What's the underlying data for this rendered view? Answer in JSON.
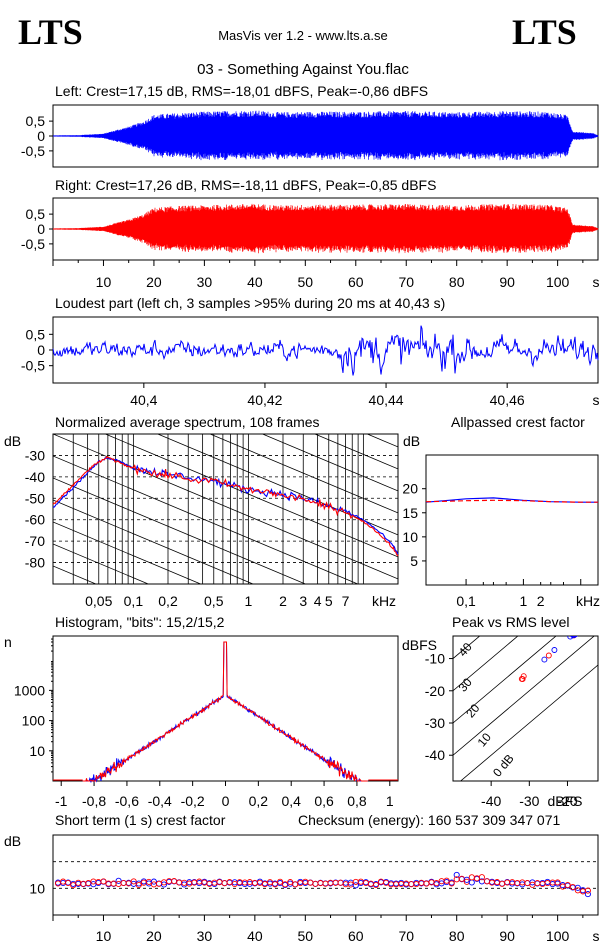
{
  "header": {
    "logo_left": "LTS",
    "logo_right": "LTS",
    "app": "MasVis ver 1.2 - www.lts.a.se",
    "file": "03 - Something Against You.flac"
  },
  "colors": {
    "left": "#0000ff",
    "right": "#ff0000",
    "text": "#000000"
  },
  "chart_data": [
    {
      "type": "area",
      "title": "Left: Crest=17,15 dB, RMS=-18,01 dBFS, Peak=-0,86 dBFS",
      "ylim": [
        -1,
        1
      ],
      "yticks": [
        "0,5",
        "0",
        "-0,5"
      ],
      "xlim": [
        0,
        108
      ],
      "envelope": [
        [
          0,
          0.02
        ],
        [
          5,
          0.03
        ],
        [
          10,
          0.08
        ],
        [
          12,
          0.18
        ],
        [
          15,
          0.32
        ],
        [
          18,
          0.5
        ],
        [
          20,
          0.72
        ],
        [
          25,
          0.78
        ],
        [
          30,
          0.82
        ],
        [
          35,
          0.85
        ],
        [
          40,
          0.86
        ],
        [
          45,
          0.8
        ],
        [
          50,
          0.82
        ],
        [
          60,
          0.82
        ],
        [
          70,
          0.84
        ],
        [
          80,
          0.8
        ],
        [
          90,
          0.84
        ],
        [
          98,
          0.82
        ],
        [
          102,
          0.7
        ],
        [
          103,
          0.15
        ],
        [
          107,
          0.1
        ],
        [
          108,
          0.02
        ]
      ]
    },
    {
      "type": "area",
      "title": "Right: Crest=17,26 dB, RMS=-18,11 dBFS, Peak=-0,85 dBFS",
      "ylim": [
        -1,
        1
      ],
      "yticks": [
        "0,5",
        "0",
        "-0,5"
      ],
      "xlim": [
        0,
        108
      ],
      "xticks": [
        "10",
        "20",
        "30",
        "40",
        "50",
        "60",
        "70",
        "80",
        "90",
        "100",
        "s"
      ],
      "envelope": [
        [
          0,
          0.02
        ],
        [
          5,
          0.03
        ],
        [
          10,
          0.08
        ],
        [
          12,
          0.18
        ],
        [
          15,
          0.32
        ],
        [
          18,
          0.5
        ],
        [
          20,
          0.72
        ],
        [
          25,
          0.78
        ],
        [
          30,
          0.8
        ],
        [
          35,
          0.83
        ],
        [
          40,
          0.85
        ],
        [
          45,
          0.8
        ],
        [
          50,
          0.82
        ],
        [
          60,
          0.82
        ],
        [
          70,
          0.84
        ],
        [
          80,
          0.8
        ],
        [
          90,
          0.85
        ],
        [
          98,
          0.82
        ],
        [
          102,
          0.7
        ],
        [
          103,
          0.15
        ],
        [
          107,
          0.1
        ],
        [
          108,
          0.02
        ]
      ]
    },
    {
      "type": "line",
      "title": "Loudest part (left  ch, 3 samples >95% during 20 ms at 40,43 s)",
      "ylim": [
        -1,
        1
      ],
      "yticks": [
        "0,5",
        "0",
        "-0,5"
      ],
      "xlim": [
        40.385,
        40.475
      ],
      "xticks": [
        "40,4",
        "40,42",
        "40,44",
        "40,46",
        "s"
      ],
      "xtick_values": [
        40.4,
        40.42,
        40.44,
        40.46
      ]
    },
    {
      "type": "line",
      "title": "Normalized average spectrum, 108 frames",
      "ylabel": "dB",
      "xlabel": "kHz",
      "yticks": [
        "-30",
        "-40",
        "-50",
        "-60",
        "-70",
        "-80"
      ],
      "ytick_values": [
        -30,
        -40,
        -50,
        -60,
        -70,
        -80
      ],
      "xticks": [
        "0,05",
        "0,1",
        "0,2",
        "0,5",
        "1",
        "2",
        "3",
        "4",
        "5",
        "7",
        "kHz"
      ],
      "xtick_values": [
        0.05,
        0.1,
        0.2,
        0.5,
        1,
        2,
        3,
        4,
        5,
        7
      ],
      "xlim": [
        0.02,
        20
      ],
      "ylim": [
        -90,
        -20
      ],
      "series": [
        {
          "values": [
            [
              0.02,
              -54
            ],
            [
              0.025,
              -49
            ],
            [
              0.03,
              -45
            ],
            [
              0.04,
              -38
            ],
            [
              0.05,
              -33
            ],
            [
              0.06,
              -31
            ],
            [
              0.08,
              -33
            ],
            [
              0.1,
              -36
            ],
            [
              0.13,
              -37
            ],
            [
              0.17,
              -38
            ],
            [
              0.2,
              -39
            ],
            [
              0.3,
              -40
            ],
            [
              0.5,
              -42
            ],
            [
              0.7,
              -44
            ],
            [
              1,
              -46
            ],
            [
              1.5,
              -47
            ],
            [
              2,
              -48
            ],
            [
              3,
              -50
            ],
            [
              4,
              -52
            ],
            [
              5,
              -54
            ],
            [
              7,
              -56
            ],
            [
              10,
              -60
            ],
            [
              14,
              -66
            ],
            [
              18,
              -72
            ],
            [
              20,
              -76
            ]
          ]
        },
        {
          "values": [
            [
              0.02,
              -53
            ],
            [
              0.025,
              -48
            ],
            [
              0.03,
              -44
            ],
            [
              0.04,
              -37
            ],
            [
              0.05,
              -33
            ],
            [
              0.06,
              -31
            ],
            [
              0.08,
              -34
            ],
            [
              0.1,
              -36
            ],
            [
              0.13,
              -37
            ],
            [
              0.17,
              -39
            ],
            [
              0.2,
              -39
            ],
            [
              0.3,
              -41
            ],
            [
              0.5,
              -42
            ],
            [
              0.7,
              -44
            ],
            [
              1,
              -46
            ],
            [
              1.5,
              -47
            ],
            [
              2,
              -49
            ],
            [
              3,
              -50
            ],
            [
              4,
              -53
            ],
            [
              5,
              -54
            ],
            [
              7,
              -56
            ],
            [
              10,
              -61
            ],
            [
              14,
              -67
            ],
            [
              18,
              -73
            ],
            [
              20,
              -77
            ]
          ]
        }
      ]
    },
    {
      "type": "line",
      "title": "Allpassed crest factor",
      "ylabel": "dB",
      "xlabel": "kHz",
      "yticks": [
        "20",
        "15",
        "10",
        "5"
      ],
      "ytick_values": [
        20,
        15,
        10,
        5
      ],
      "xticks": [
        "0,1",
        "1",
        "2",
        "kHz"
      ],
      "xtick_values": [
        0.1,
        1,
        2
      ],
      "ylim": [
        0,
        27
      ],
      "xlim": [
        0.02,
        20
      ],
      "series": [
        {
          "values": [
            [
              0.02,
              17.2
            ],
            [
              0.05,
              17.6
            ],
            [
              0.1,
              17.9
            ],
            [
              0.3,
              18.1
            ],
            [
              1,
              17.6
            ],
            [
              3,
              17.3
            ],
            [
              10,
              17.2
            ],
            [
              20,
              17.2
            ]
          ]
        },
        {
          "values": [
            [
              0.02,
              17.3
            ],
            [
              0.05,
              17.4
            ],
            [
              0.1,
              17.5
            ],
            [
              0.3,
              17.6
            ],
            [
              1,
              17.5
            ],
            [
              3,
              17.3
            ],
            [
              10,
              17.2
            ],
            [
              20,
              17.2
            ]
          ]
        }
      ]
    },
    {
      "type": "line",
      "title": "Histogram, \"bits\": 15,2/15,2",
      "ylabel": "n",
      "yticks": [
        "1000",
        "100",
        "10"
      ],
      "ytick_values": [
        1000,
        100,
        10
      ],
      "xticks": [
        "-1",
        "-0,8",
        "-0,6",
        "-0,4",
        "-0,2",
        "0",
        "0,2",
        "0,4",
        "0,6",
        "0,8",
        "1"
      ],
      "xtick_values": [
        -1,
        -0.8,
        -0.6,
        -0.4,
        -0.2,
        0,
        0.2,
        0.4,
        0.6,
        0.8,
        1
      ],
      "xlim": [
        -1.05,
        1.05
      ]
    },
    {
      "type": "scatter",
      "title": "Peak vs RMS level",
      "ylabel": "dBFS",
      "xlabel": "dBFS",
      "yticks": [
        "-10",
        "-20",
        "-30",
        "-40"
      ],
      "ytick_values": [
        -10,
        -20,
        -30,
        -40
      ],
      "xticks": [
        "-40",
        "-30",
        "-20",
        "dBFS"
      ],
      "xtick_values": [
        -40,
        -30,
        -20
      ],
      "xlim": [
        -50,
        -12
      ],
      "ylim": [
        -48,
        -3
      ],
      "diag_labels": [
        "40",
        "30",
        "20",
        "10",
        "0 dB"
      ]
    },
    {
      "type": "scatter",
      "title": "Short term (1 s) crest factor",
      "checksum": "Checksum (energy):   160 537 309 347 071",
      "ylabel": "dB",
      "yticks": [
        "10"
      ],
      "xticks": [
        "10",
        "20",
        "30",
        "40",
        "50",
        "60",
        "70",
        "80",
        "90",
        "100",
        "s"
      ],
      "xlim": [
        0,
        108
      ],
      "ylim": [
        0,
        30
      ]
    }
  ]
}
